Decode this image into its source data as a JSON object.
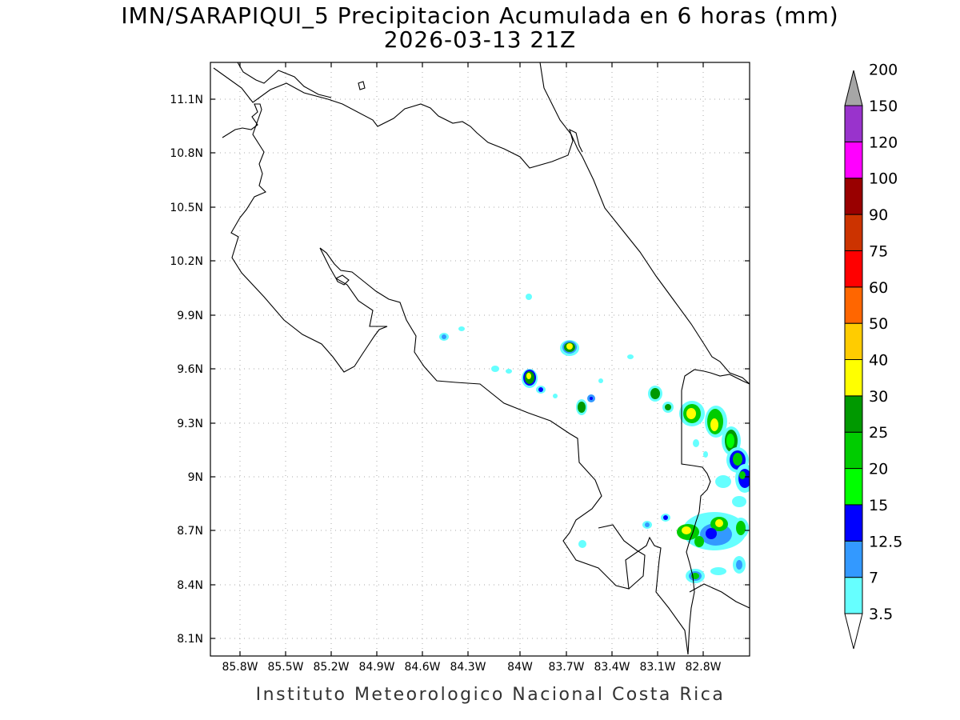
{
  "title": "IMN/SARAPIQUI_5 Precipitacion Acumulada en 6 horas (mm)",
  "subtitle": "2026-03-13 21Z",
  "footer": "Instituto Meteorologico Nacional Costa Rica",
  "axes": {
    "x_ticks": [
      "85.8W",
      "85.5W",
      "85.2W",
      "84.9W",
      "84.6W",
      "84.3W",
      "84W",
      "83.7W",
      "83.4W",
      "83.1W",
      "82.8W"
    ],
    "y_ticks": [
      "11.1N",
      "10.8N",
      "10.5N",
      "10.2N",
      "9.9N",
      "9.6N",
      "9.3N",
      "9N",
      "8.7N",
      "8.4N",
      "8.1N"
    ]
  },
  "legend": {
    "labels": [
      "3.5",
      "7",
      "12.5",
      "15",
      "20",
      "25",
      "30",
      "40",
      "50",
      "60",
      "75",
      "90",
      "100",
      "120",
      "150",
      "200"
    ],
    "colors": [
      "#66ffff",
      "#3399ff",
      "#0000ff",
      "#00ff00",
      "#00cc00",
      "#009900",
      "#ffff00",
      "#ffcc00",
      "#ff6600",
      "#ff0000",
      "#cc3300",
      "#990000",
      "#ff00ff",
      "#9933cc",
      "#f2f2f2",
      "#a6a6a6"
    ]
  },
  "map": {
    "region": "Costa Rica",
    "variable": "6-hour accumulated precipitation",
    "units": "mm",
    "features": [
      "coastline",
      "border"
    ],
    "grid": true
  }
}
